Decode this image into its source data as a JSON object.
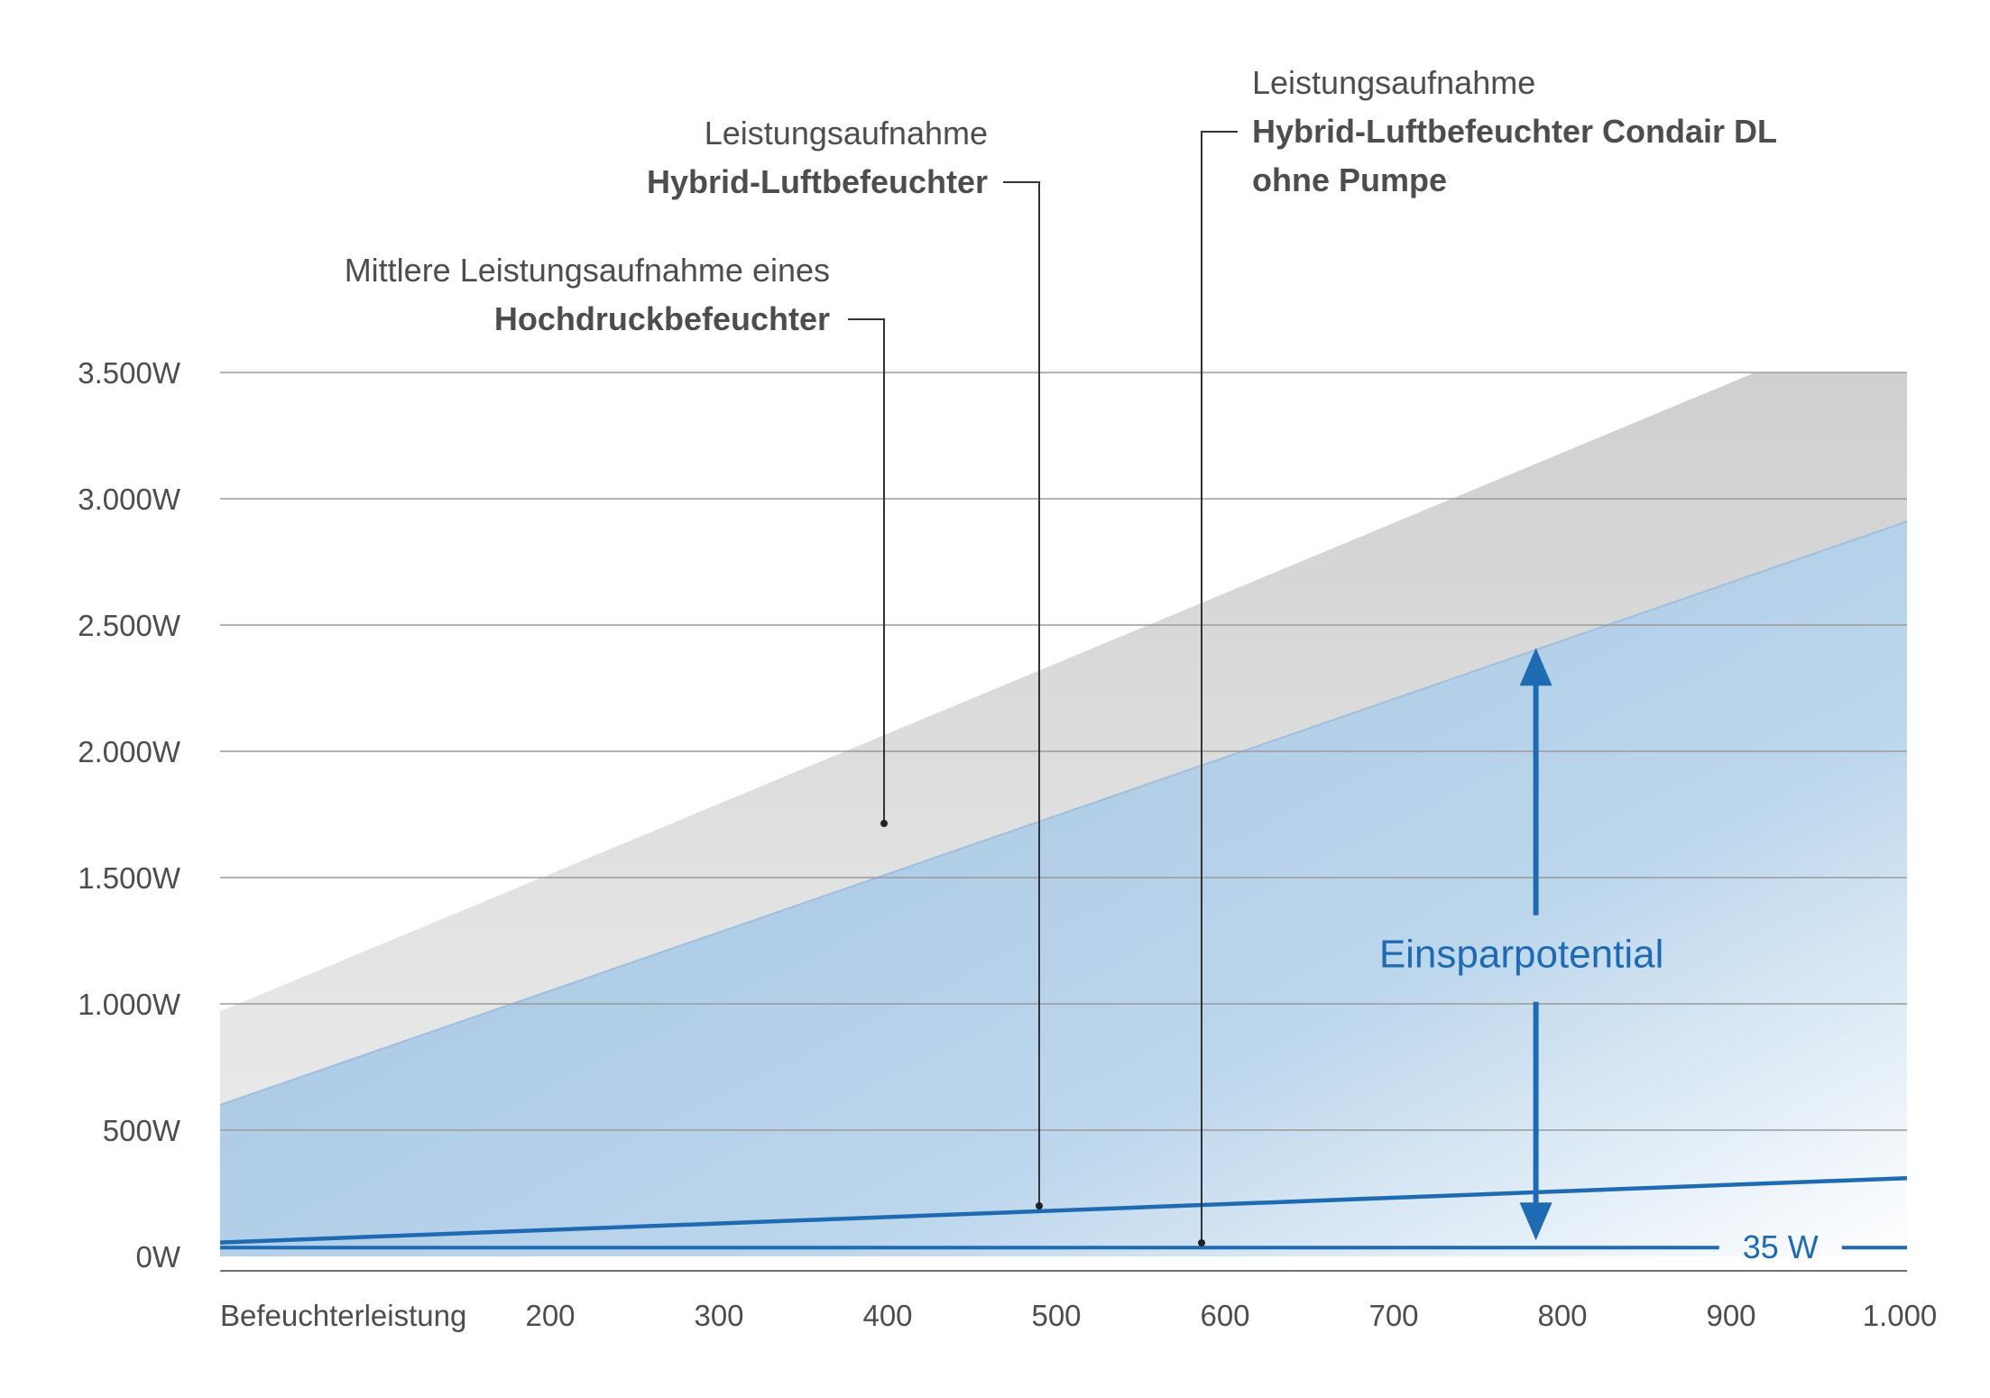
{
  "chart_data": {
    "type": "area",
    "x_axis_label": "Befeuchterleistung",
    "x_tick_labels": [
      "200",
      "300",
      "400",
      "500",
      "600",
      "700",
      "800",
      "900",
      "1.000"
    ],
    "x_ticks": [
      200,
      300,
      400,
      500,
      600,
      700,
      800,
      900,
      1000
    ],
    "xlim": [
      0,
      1000
    ],
    "y_tick_labels": [
      "0W",
      "500W",
      "1.000W",
      "1.500W",
      "2.000W",
      "2.500W",
      "3.000W",
      "3.500W"
    ],
    "y_ticks": [
      0,
      500,
      1000,
      1500,
      2000,
      2500,
      3000,
      3500
    ],
    "ylim": [
      0,
      3500
    ],
    "grid": true,
    "series": [
      {
        "key": "hochdruck",
        "label_line1": "Mittlere Leistungsaufnahme eines",
        "label_line2": "Hochdruckbefeuchter",
        "x": [
          0,
          910,
          1000
        ],
        "y": [
          970,
          3500,
          3500
        ],
        "color": "#d4d4d4"
      },
      {
        "key": "hybrid",
        "label_line1": "Leistungsaufnahme",
        "label_line2": "Hybrid-Luftbefeuchter",
        "x": [
          0,
          1000
        ],
        "y": [
          600,
          2910
        ],
        "color": "#aecde6"
      },
      {
        "key": "condair",
        "label_line1": "Leistungsaufnahme",
        "label_line2": "Hybrid-Luftbefeuchter Condair DL",
        "label_line3": "ohne Pumpe",
        "x": [
          0,
          1000
        ],
        "y": [
          55,
          310
        ],
        "color": "#1f6bb3"
      },
      {
        "key": "baseline",
        "label": "35 W",
        "x": [
          0,
          1000
        ],
        "y": [
          35,
          35
        ],
        "color": "#1f6bb3"
      }
    ],
    "annotations": {
      "savings_label": "Einsparpotential",
      "savings_arrow_x": 780,
      "savings_arrow_y": [
        35,
        2410
      ]
    }
  }
}
